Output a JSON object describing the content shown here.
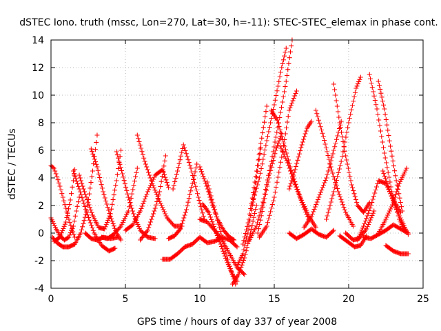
{
  "chart_data": {
    "type": "scatter",
    "title": "dSTEC Iono. truth (mssc, Lon=270, Lat=30, h=-11): STEC-STEC_elemax in phase cont.",
    "xlabel": "GPS time / hours of day 337 of year 2008",
    "ylabel": "dSTEC  / TECUs",
    "xlim": [
      0,
      25
    ],
    "ylim": [
      -4,
      14
    ],
    "xticks": [
      "0",
      "5",
      "10",
      "15",
      "20",
      "25"
    ],
    "yticks": [
      "-4",
      "-2",
      "0",
      "2",
      "4",
      "6",
      "8",
      "10",
      "12",
      "14"
    ],
    "grid": true,
    "marker": "+",
    "color": "#ff0000",
    "series": [
      {
        "x": [
          0.0,
          0.2,
          0.4,
          0.6,
          0.8,
          1.0,
          1.2,
          1.4,
          1.6
        ],
        "y": [
          4.9,
          4.7,
          4.1,
          3.4,
          2.6,
          1.8,
          1.0,
          0.3,
          -0.3
        ]
      },
      {
        "x": [
          0.0,
          0.3,
          0.6,
          0.9,
          1.2,
          1.5,
          1.7,
          1.9
        ],
        "y": [
          1.1,
          0.4,
          -0.2,
          -0.5,
          -0.3,
          0.5,
          1.6,
          2.6
        ]
      },
      {
        "x": [
          0.1,
          0.4,
          0.8,
          1.2,
          1.6,
          2.0,
          2.4,
          2.8,
          3.1
        ],
        "y": [
          -0.3,
          -0.7,
          -1.0,
          -1.0,
          -0.8,
          0.0,
          1.6,
          4.5,
          7.1
        ]
      },
      {
        "x": [
          0.2,
          0.6,
          1.0,
          1.3,
          1.5,
          1.6
        ],
        "y": [
          -0.6,
          -0.3,
          0.8,
          2.4,
          3.8,
          4.6
        ]
      },
      {
        "x": [
          1.5,
          1.9,
          2.4,
          2.9,
          3.4,
          3.9,
          4.3
        ],
        "y": [
          4.5,
          3.2,
          1.5,
          0.0,
          -0.9,
          -1.3,
          -1.1
        ]
      },
      {
        "x": [
          1.9,
          2.3,
          2.8,
          3.2,
          3.6,
          4.0,
          4.4,
          4.7
        ],
        "y": [
          4.2,
          2.8,
          1.3,
          0.4,
          0.3,
          1.4,
          3.8,
          6.0
        ]
      },
      {
        "x": [
          2.7,
          3.1,
          3.5,
          4.0,
          4.4,
          4.7
        ],
        "y": [
          6.1,
          4.8,
          3.0,
          1.2,
          0.0,
          -0.5
        ]
      },
      {
        "x": [
          2.3,
          2.7,
          3.1,
          3.5,
          4.0,
          4.5
        ],
        "y": [
          0.0,
          -0.4,
          -0.5,
          -0.3,
          -0.4,
          -0.3
        ]
      },
      {
        "x": [
          3.4,
          3.8,
          4.2,
          4.7,
          5.2,
          5.8
        ],
        "y": [
          -0.3,
          -0.4,
          -0.1,
          0.5,
          1.6,
          4.7
        ]
      },
      {
        "x": [
          4.4,
          4.8,
          5.2,
          5.6,
          6.0,
          6.5,
          7.0
        ],
        "y": [
          5.9,
          4.3,
          2.6,
          1.2,
          0.2,
          -0.3,
          -0.4
        ]
      },
      {
        "x": [
          5.8,
          6.3,
          6.8,
          7.3,
          7.8,
          8.3,
          8.8
        ],
        "y": [
          7.1,
          5.2,
          3.6,
          2.3,
          1.1,
          0.5,
          0.5
        ]
      },
      {
        "x": [
          5.0,
          5.5,
          6.0,
          6.5,
          7.0,
          7.5,
          7.9
        ],
        "y": [
          0.2,
          0.6,
          1.6,
          3.0,
          4.2,
          4.6,
          3.3
        ]
      },
      {
        "x": [
          6.0,
          6.5,
          7.0,
          7.3,
          7.7
        ],
        "y": [
          -0.5,
          0.2,
          1.8,
          3.0,
          5.6
        ]
      },
      {
        "x": [
          7.5,
          8.0,
          8.5,
          9.0,
          9.5,
          10.0
        ],
        "y": [
          -1.9,
          -1.9,
          -1.5,
          -1.0,
          -0.8,
          -0.3
        ]
      },
      {
        "x": [
          7.9,
          8.3,
          8.7,
          9.1,
          9.5,
          9.8
        ],
        "y": [
          -0.4,
          -0.2,
          0.3,
          1.7,
          3.6,
          5.0
        ]
      },
      {
        "x": [
          8.2,
          8.5,
          8.9,
          9.4,
          9.9,
          10.3
        ],
        "y": [
          3.2,
          4.5,
          6.4,
          4.7,
          2.6,
          1.0
        ]
      },
      {
        "x": [
          10.0,
          10.4,
          10.8,
          11.2,
          11.6,
          12.0,
          12.3
        ],
        "y": [
          4.8,
          3.6,
          2.2,
          1.0,
          0.2,
          -0.3,
          -0.5
        ]
      },
      {
        "x": [
          10.0,
          10.5,
          11.0,
          11.5,
          12.0,
          12.5,
          13.0
        ],
        "y": [
          1.0,
          0.8,
          0.2,
          -0.5,
          -1.5,
          -2.5,
          -3.0
        ]
      },
      {
        "x": [
          10.2,
          10.6,
          11.0,
          11.4,
          11.8,
          12.2,
          12.5
        ],
        "y": [
          2.1,
          1.5,
          0.3,
          -0.8,
          -2.0,
          -3.0,
          -3.5
        ]
      },
      {
        "x": [
          10.5,
          11.0,
          11.5,
          12.0,
          12.4
        ],
        "y": [
          3.7,
          1.7,
          -0.4,
          -2.4,
          -3.7
        ]
      },
      {
        "x": [
          10.0,
          10.5,
          11.0,
          11.5,
          12.0,
          12.5
        ],
        "y": [
          -0.3,
          -0.7,
          -0.6,
          -0.3,
          -0.5,
          -1.0
        ]
      },
      {
        "x": [
          12.2,
          12.6,
          13.0,
          13.4,
          13.8
        ],
        "y": [
          -3.7,
          -3.0,
          -1.8,
          0.0,
          2.0
        ]
      },
      {
        "x": [
          12.5,
          12.9,
          13.3,
          13.7,
          14.1
        ],
        "y": [
          -2.4,
          -1.5,
          0.5,
          3.2,
          6.2
        ]
      },
      {
        "x": [
          12.9,
          13.3,
          13.7,
          14.1,
          14.5
        ],
        "y": [
          -0.8,
          1.0,
          3.7,
          6.5,
          9.2
        ]
      },
      {
        "x": [
          13.3,
          13.8,
          14.3,
          14.8,
          15.3,
          15.8,
          16.2
        ],
        "y": [
          -0.6,
          0.5,
          2.5,
          5.2,
          8.0,
          11.0,
          14.0
        ]
      },
      {
        "x": [
          13.5,
          14.0,
          14.5,
          15.0,
          15.5,
          15.8
        ],
        "y": [
          2.0,
          4.0,
          6.7,
          9.3,
          12.0,
          13.4
        ]
      },
      {
        "x": [
          13.9,
          14.3,
          14.7,
          15.1,
          15.5
        ],
        "y": [
          0.0,
          2.2,
          4.3,
          6.0,
          7.2
        ]
      },
      {
        "x": [
          14.0,
          14.5,
          15.0,
          15.5,
          16.0,
          16.5
        ],
        "y": [
          -0.3,
          0.5,
          2.6,
          5.5,
          8.9,
          10.3
        ]
      },
      {
        "x": [
          14.8,
          15.2,
          15.7,
          16.2,
          16.8,
          17.3
        ],
        "y": [
          8.9,
          8.2,
          6.3,
          4.3,
          2.4,
          1.0
        ]
      },
      {
        "x": [
          15.4,
          15.9,
          16.4,
          16.9,
          17.4,
          17.8
        ],
        "y": [
          6.3,
          5.1,
          3.5,
          2.2,
          1.1,
          0.4
        ]
      },
      {
        "x": [
          16.0,
          16.4,
          16.8,
          17.2,
          17.5
        ],
        "y": [
          3.2,
          4.6,
          6.2,
          7.6,
          8.1
        ]
      },
      {
        "x": [
          16.0,
          16.5,
          17.0,
          17.5,
          18.0,
          18.5,
          19.0
        ],
        "y": [
          0.0,
          -0.4,
          -0.1,
          0.3,
          -0.1,
          -0.3,
          0.2
        ]
      },
      {
        "x": [
          17.0,
          17.5,
          18.0,
          18.5,
          19.0,
          19.5
        ],
        "y": [
          0.4,
          1.2,
          2.6,
          4.0,
          6.0,
          8.1
        ]
      },
      {
        "x": [
          17.8,
          18.3,
          18.8,
          19.3,
          19.8,
          20.3
        ],
        "y": [
          8.9,
          7.0,
          4.8,
          3.0,
          1.5,
          0.5
        ]
      },
      {
        "x": [
          18.5,
          19.0,
          19.5,
          20.0,
          20.5,
          20.8
        ],
        "y": [
          1.0,
          3.0,
          5.2,
          8.0,
          10.5,
          11.3
        ]
      },
      {
        "x": [
          19.0,
          19.4,
          19.8,
          20.2,
          20.6,
          21.0,
          21.4
        ],
        "y": [
          10.8,
          8.0,
          5.6,
          3.5,
          2.0,
          1.5,
          2.2
        ]
      },
      {
        "x": [
          19.4,
          19.9,
          20.4,
          20.8,
          21.2
        ],
        "y": [
          -0.2,
          -0.6,
          -1.0,
          -0.9,
          -0.2
        ]
      },
      {
        "x": [
          19.8,
          20.3,
          20.7,
          21.2,
          21.7
        ],
        "y": [
          0.0,
          -0.5,
          -0.4,
          0.3,
          1.6
        ]
      },
      {
        "x": [
          20.6,
          21.0,
          21.5,
          22.0,
          22.5,
          23.0,
          23.5
        ],
        "y": [
          -0.5,
          0.5,
          2.0,
          3.8,
          3.6,
          2.4,
          1.5
        ]
      },
      {
        "x": [
          21.4,
          21.9,
          22.4,
          22.9,
          23.4,
          23.8
        ],
        "y": [
          11.5,
          9.0,
          5.8,
          3.0,
          1.0,
          0.1
        ]
      },
      {
        "x": [
          22.0,
          22.4,
          22.8,
          23.2,
          23.6
        ],
        "y": [
          11.0,
          9.0,
          6.3,
          3.8,
          1.6
        ]
      },
      {
        "x": [
          22.0,
          22.5,
          23.0,
          23.4,
          23.9
        ],
        "y": [
          0.0,
          1.0,
          2.2,
          3.6,
          4.7
        ]
      },
      {
        "x": [
          22.3,
          22.7,
          23.1,
          23.6,
          24.0
        ],
        "y": [
          4.5,
          3.2,
          2.0,
          0.8,
          -0.1
        ]
      },
      {
        "x": [
          22.5,
          23.0,
          23.5,
          24.0
        ],
        "y": [
          -0.9,
          -1.3,
          -1.5,
          -1.5
        ]
      },
      {
        "x": [
          21.0,
          21.5,
          22.0,
          22.5,
          23.0,
          23.5,
          24.0
        ],
        "y": [
          -0.3,
          -0.4,
          -0.1,
          0.2,
          0.6,
          0.3,
          0.0
        ]
      }
    ]
  }
}
